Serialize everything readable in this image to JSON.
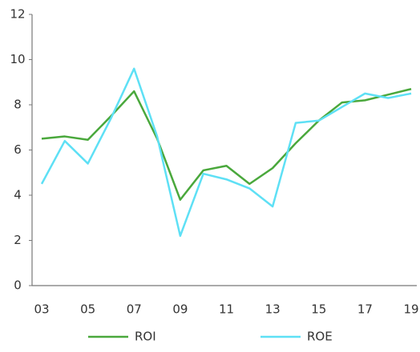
{
  "chart_data": {
    "type": "line",
    "categories": [
      "03",
      null,
      "05",
      null,
      "07",
      null,
      "09",
      null,
      "11",
      null,
      "13",
      null,
      "15",
      null,
      "17",
      null,
      "19"
    ],
    "series": [
      {
        "name": "ROI",
        "color": "#4aa83c",
        "values": [
          6.5,
          6.6,
          6.45,
          7.5,
          8.6,
          6.5,
          3.8,
          5.1,
          5.3,
          4.5,
          5.2,
          6.3,
          7.3,
          8.1,
          8.2,
          8.45,
          8.7
        ]
      },
      {
        "name": "ROE",
        "color": "#5ee0f5",
        "values": [
          4.5,
          6.4,
          5.4,
          7.4,
          9.6,
          6.6,
          2.2,
          4.95,
          4.7,
          4.3,
          3.5,
          7.2,
          7.3,
          7.9,
          8.5,
          8.3,
          8.5
        ]
      }
    ],
    "ylim": [
      0,
      12
    ],
    "yticks": [
      0,
      2,
      4,
      6,
      8,
      10,
      12
    ],
    "grid": false,
    "legend": "bottom"
  }
}
